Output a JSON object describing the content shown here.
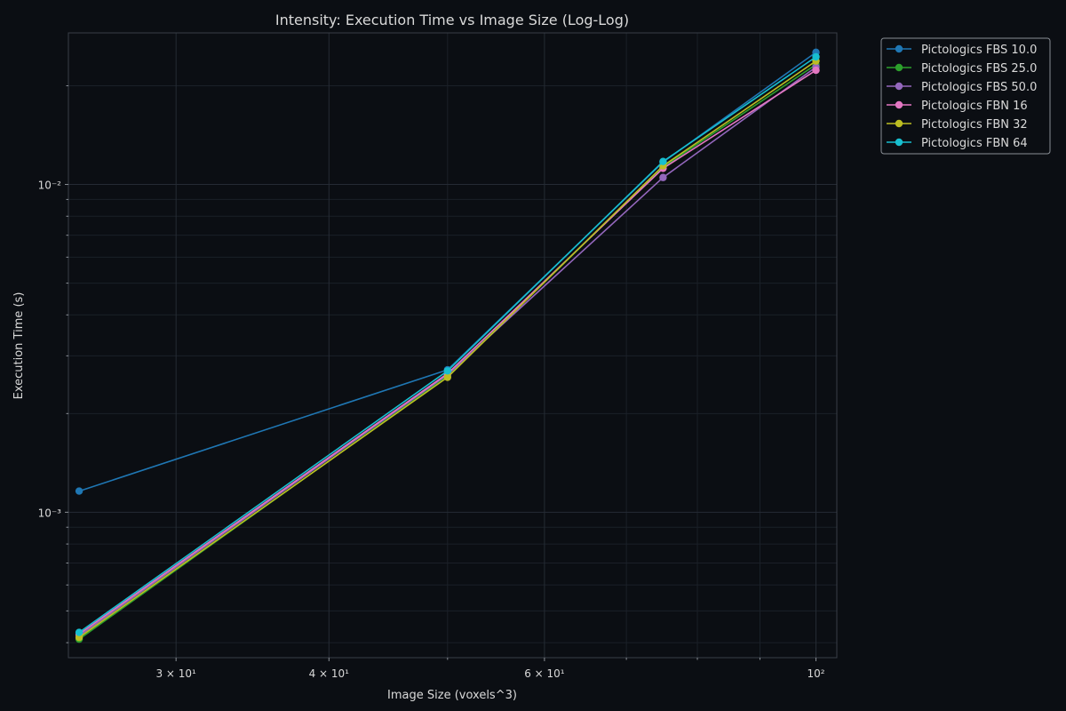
{
  "chart_data": {
    "type": "line",
    "title": "Intensity: Execution Time vs Image Size (Log-Log)",
    "xlabel": "Image Size (voxels^3)",
    "ylabel": "Execution Time (s)",
    "x_scale": "log",
    "y_scale": "log",
    "xlim": [
      24.5,
      104
    ],
    "ylim": [
      0.00036,
      0.029
    ],
    "grid": true,
    "legend_position": "outside top-right",
    "x_ticks": [
      {
        "value": 30,
        "label": "3 × 10¹"
      },
      {
        "value": 40,
        "label": "4 × 10¹"
      },
      {
        "value": 60,
        "label": "6 × 10¹"
      },
      {
        "value": 100,
        "label": "10²"
      }
    ],
    "y_ticks": [
      {
        "value": 0.001,
        "label": "10⁻³"
      },
      {
        "value": 0.01,
        "label": "10⁻²"
      }
    ],
    "x": [
      25,
      50,
      75,
      100
    ],
    "series": [
      {
        "name": "Pictologics FBS 10.0",
        "color": "#1f77b4",
        "values": [
          0.00116,
          0.00272,
          0.0117,
          0.0253
        ]
      },
      {
        "name": "Pictologics FBS 25.0",
        "color": "#2ca02c",
        "values": [
          0.00041,
          0.0026,
          0.0113,
          0.0232
        ]
      },
      {
        "name": "Pictologics FBS 50.0",
        "color": "#9467bd",
        "values": [
          0.00042,
          0.00263,
          0.0105,
          0.0228
        ]
      },
      {
        "name": "Pictologics FBN 16",
        "color": "#e377c2",
        "values": [
          0.000425,
          0.00265,
          0.0112,
          0.0223
        ]
      },
      {
        "name": "Pictologics FBN 32",
        "color": "#bcbd22",
        "values": [
          0.000415,
          0.00258,
          0.0114,
          0.0238
        ]
      },
      {
        "name": "Pictologics FBN 64",
        "color": "#17becf",
        "values": [
          0.00043,
          0.0027,
          0.01175,
          0.0245
        ]
      }
    ]
  }
}
